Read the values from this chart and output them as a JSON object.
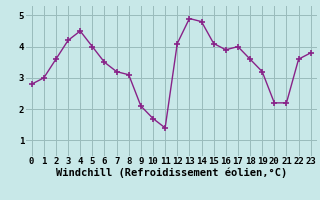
{
  "x": [
    0,
    1,
    2,
    3,
    4,
    5,
    6,
    7,
    8,
    9,
    10,
    11,
    12,
    13,
    14,
    15,
    16,
    17,
    18,
    19,
    20,
    21,
    22,
    23
  ],
  "y": [
    2.8,
    3.0,
    3.6,
    4.2,
    4.5,
    4.0,
    3.5,
    3.2,
    3.1,
    2.1,
    1.7,
    1.4,
    4.1,
    4.9,
    4.8,
    4.1,
    3.9,
    4.0,
    3.6,
    3.2,
    2.2,
    2.2,
    3.6,
    3.8
  ],
  "line_color": "#882288",
  "marker": "+",
  "marker_size": 4,
  "linewidth": 1.0,
  "xlabel": "Windchill (Refroidissement éolien,°C)",
  "xlabel_fontsize": 7.5,
  "xlabel_fontweight": "bold",
  "yticks": [
    1,
    2,
    3,
    4,
    5
  ],
  "xticks": [
    0,
    1,
    2,
    3,
    4,
    5,
    6,
    7,
    8,
    9,
    10,
    11,
    12,
    13,
    14,
    15,
    16,
    17,
    18,
    19,
    20,
    21,
    22,
    23
  ],
  "xtick_labels": [
    "0",
    "1",
    "2",
    "3",
    "4",
    "5",
    "6",
    "7",
    "8",
    "9",
    "10",
    "11",
    "12",
    "13",
    "14",
    "15",
    "16",
    "17",
    "18",
    "19",
    "20",
    "21",
    "22",
    "23"
  ],
  "ylim": [
    0.5,
    5.3
  ],
  "xlim": [
    -0.5,
    23.5
  ],
  "bg_color": "#c8e8e8",
  "grid_color": "#99bbbb",
  "tick_fontsize": 6.5,
  "tick_fontweight": "bold"
}
